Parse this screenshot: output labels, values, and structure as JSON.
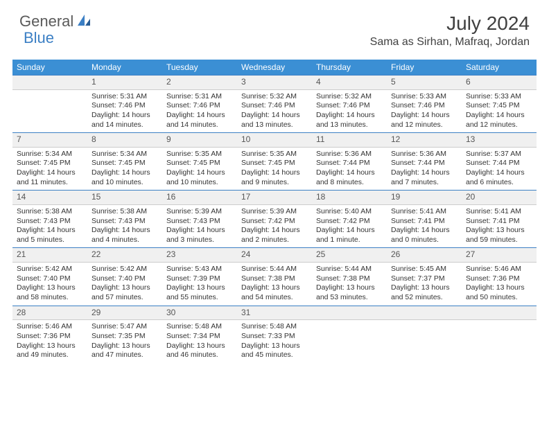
{
  "brand": {
    "part1": "General",
    "part2": "Blue"
  },
  "title": "July 2024",
  "location": "Sama as Sirhan, Mafraq, Jordan",
  "theme": {
    "header_bg": "#3b8fd4",
    "header_text": "#ffffff",
    "accent": "#3b7fc4",
    "daynum_bg": "#f0f0f0",
    "page_bg": "#ffffff",
    "text": "#333333"
  },
  "weekdays": [
    "Sunday",
    "Monday",
    "Tuesday",
    "Wednesday",
    "Thursday",
    "Friday",
    "Saturday"
  ],
  "weeks": [
    [
      null,
      {
        "n": "1",
        "sr": "5:31 AM",
        "ss": "7:46 PM",
        "dl": "14 hours and 14 minutes."
      },
      {
        "n": "2",
        "sr": "5:31 AM",
        "ss": "7:46 PM",
        "dl": "14 hours and 14 minutes."
      },
      {
        "n": "3",
        "sr": "5:32 AM",
        "ss": "7:46 PM",
        "dl": "14 hours and 13 minutes."
      },
      {
        "n": "4",
        "sr": "5:32 AM",
        "ss": "7:46 PM",
        "dl": "14 hours and 13 minutes."
      },
      {
        "n": "5",
        "sr": "5:33 AM",
        "ss": "7:46 PM",
        "dl": "14 hours and 12 minutes."
      },
      {
        "n": "6",
        "sr": "5:33 AM",
        "ss": "7:45 PM",
        "dl": "14 hours and 12 minutes."
      }
    ],
    [
      {
        "n": "7",
        "sr": "5:34 AM",
        "ss": "7:45 PM",
        "dl": "14 hours and 11 minutes."
      },
      {
        "n": "8",
        "sr": "5:34 AM",
        "ss": "7:45 PM",
        "dl": "14 hours and 10 minutes."
      },
      {
        "n": "9",
        "sr": "5:35 AM",
        "ss": "7:45 PM",
        "dl": "14 hours and 10 minutes."
      },
      {
        "n": "10",
        "sr": "5:35 AM",
        "ss": "7:45 PM",
        "dl": "14 hours and 9 minutes."
      },
      {
        "n": "11",
        "sr": "5:36 AM",
        "ss": "7:44 PM",
        "dl": "14 hours and 8 minutes."
      },
      {
        "n": "12",
        "sr": "5:36 AM",
        "ss": "7:44 PM",
        "dl": "14 hours and 7 minutes."
      },
      {
        "n": "13",
        "sr": "5:37 AM",
        "ss": "7:44 PM",
        "dl": "14 hours and 6 minutes."
      }
    ],
    [
      {
        "n": "14",
        "sr": "5:38 AM",
        "ss": "7:43 PM",
        "dl": "14 hours and 5 minutes."
      },
      {
        "n": "15",
        "sr": "5:38 AM",
        "ss": "7:43 PM",
        "dl": "14 hours and 4 minutes."
      },
      {
        "n": "16",
        "sr": "5:39 AM",
        "ss": "7:43 PM",
        "dl": "14 hours and 3 minutes."
      },
      {
        "n": "17",
        "sr": "5:39 AM",
        "ss": "7:42 PM",
        "dl": "14 hours and 2 minutes."
      },
      {
        "n": "18",
        "sr": "5:40 AM",
        "ss": "7:42 PM",
        "dl": "14 hours and 1 minute."
      },
      {
        "n": "19",
        "sr": "5:41 AM",
        "ss": "7:41 PM",
        "dl": "14 hours and 0 minutes."
      },
      {
        "n": "20",
        "sr": "5:41 AM",
        "ss": "7:41 PM",
        "dl": "13 hours and 59 minutes."
      }
    ],
    [
      {
        "n": "21",
        "sr": "5:42 AM",
        "ss": "7:40 PM",
        "dl": "13 hours and 58 minutes."
      },
      {
        "n": "22",
        "sr": "5:42 AM",
        "ss": "7:40 PM",
        "dl": "13 hours and 57 minutes."
      },
      {
        "n": "23",
        "sr": "5:43 AM",
        "ss": "7:39 PM",
        "dl": "13 hours and 55 minutes."
      },
      {
        "n": "24",
        "sr": "5:44 AM",
        "ss": "7:38 PM",
        "dl": "13 hours and 54 minutes."
      },
      {
        "n": "25",
        "sr": "5:44 AM",
        "ss": "7:38 PM",
        "dl": "13 hours and 53 minutes."
      },
      {
        "n": "26",
        "sr": "5:45 AM",
        "ss": "7:37 PM",
        "dl": "13 hours and 52 minutes."
      },
      {
        "n": "27",
        "sr": "5:46 AM",
        "ss": "7:36 PM",
        "dl": "13 hours and 50 minutes."
      }
    ],
    [
      {
        "n": "28",
        "sr": "5:46 AM",
        "ss": "7:36 PM",
        "dl": "13 hours and 49 minutes."
      },
      {
        "n": "29",
        "sr": "5:47 AM",
        "ss": "7:35 PM",
        "dl": "13 hours and 47 minutes."
      },
      {
        "n": "30",
        "sr": "5:48 AM",
        "ss": "7:34 PM",
        "dl": "13 hours and 46 minutes."
      },
      {
        "n": "31",
        "sr": "5:48 AM",
        "ss": "7:33 PM",
        "dl": "13 hours and 45 minutes."
      },
      null,
      null,
      null
    ]
  ],
  "labels": {
    "sunrise": "Sunrise:",
    "sunset": "Sunset:",
    "daylight": "Daylight:"
  }
}
